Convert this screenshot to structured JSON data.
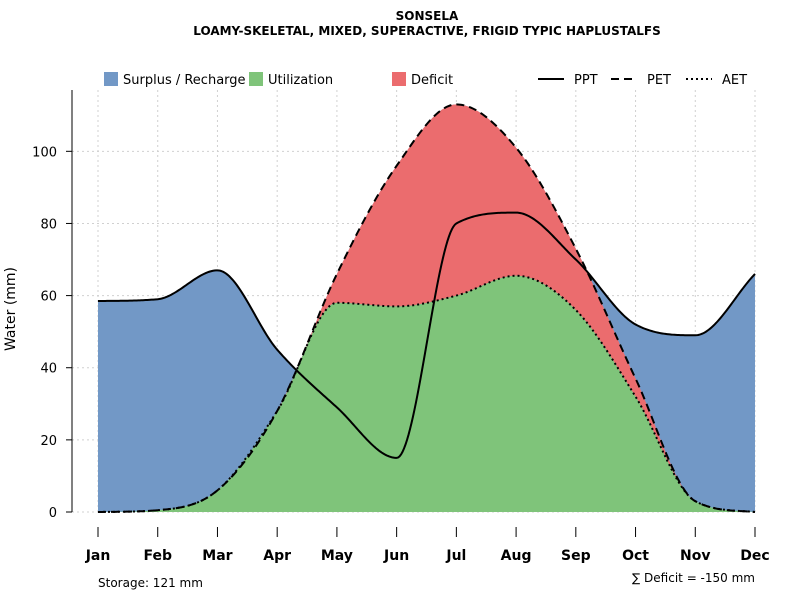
{
  "chart_data": {
    "type": "area",
    "title": "SONSELA",
    "subtitle": "LOAMY-SKELETAL, MIXED, SUPERACTIVE, FRIGID TYPIC HAPLUSTALFS",
    "xlabel": "",
    "ylabel": "Water (mm)",
    "ylim": [
      0,
      117
    ],
    "yticks": [
      0,
      20,
      40,
      60,
      80,
      100
    ],
    "grid": true,
    "categories": [
      "Jan",
      "Feb",
      "Mar",
      "Apr",
      "May",
      "Jun",
      "Jul",
      "Aug",
      "Sep",
      "Oct",
      "Nov",
      "Dec"
    ],
    "series": [
      {
        "name": "PPT",
        "style": "solid",
        "values": [
          58.5,
          59,
          67,
          45,
          29,
          15,
          80,
          83,
          70,
          52,
          49,
          66
        ]
      },
      {
        "name": "PET",
        "style": "dashed",
        "values": [
          0,
          0.5,
          6,
          28,
          66,
          96,
          113,
          101,
          73,
          37,
          3,
          0
        ]
      },
      {
        "name": "AET",
        "style": "dotted",
        "values": [
          0,
          0.5,
          6,
          28,
          58,
          57,
          60,
          65.5,
          56,
          32,
          3,
          0
        ]
      }
    ],
    "areas": [
      {
        "name": "Surplus / Recharge",
        "color": "#7298C6"
      },
      {
        "name": "Utilization",
        "color": "#7FC47A"
      },
      {
        "name": "Deficit",
        "color": "#EB6C6E"
      }
    ],
    "storage_label": "Storage: 121 mm",
    "deficit_label": "∑ Deficit = -150 mm"
  }
}
